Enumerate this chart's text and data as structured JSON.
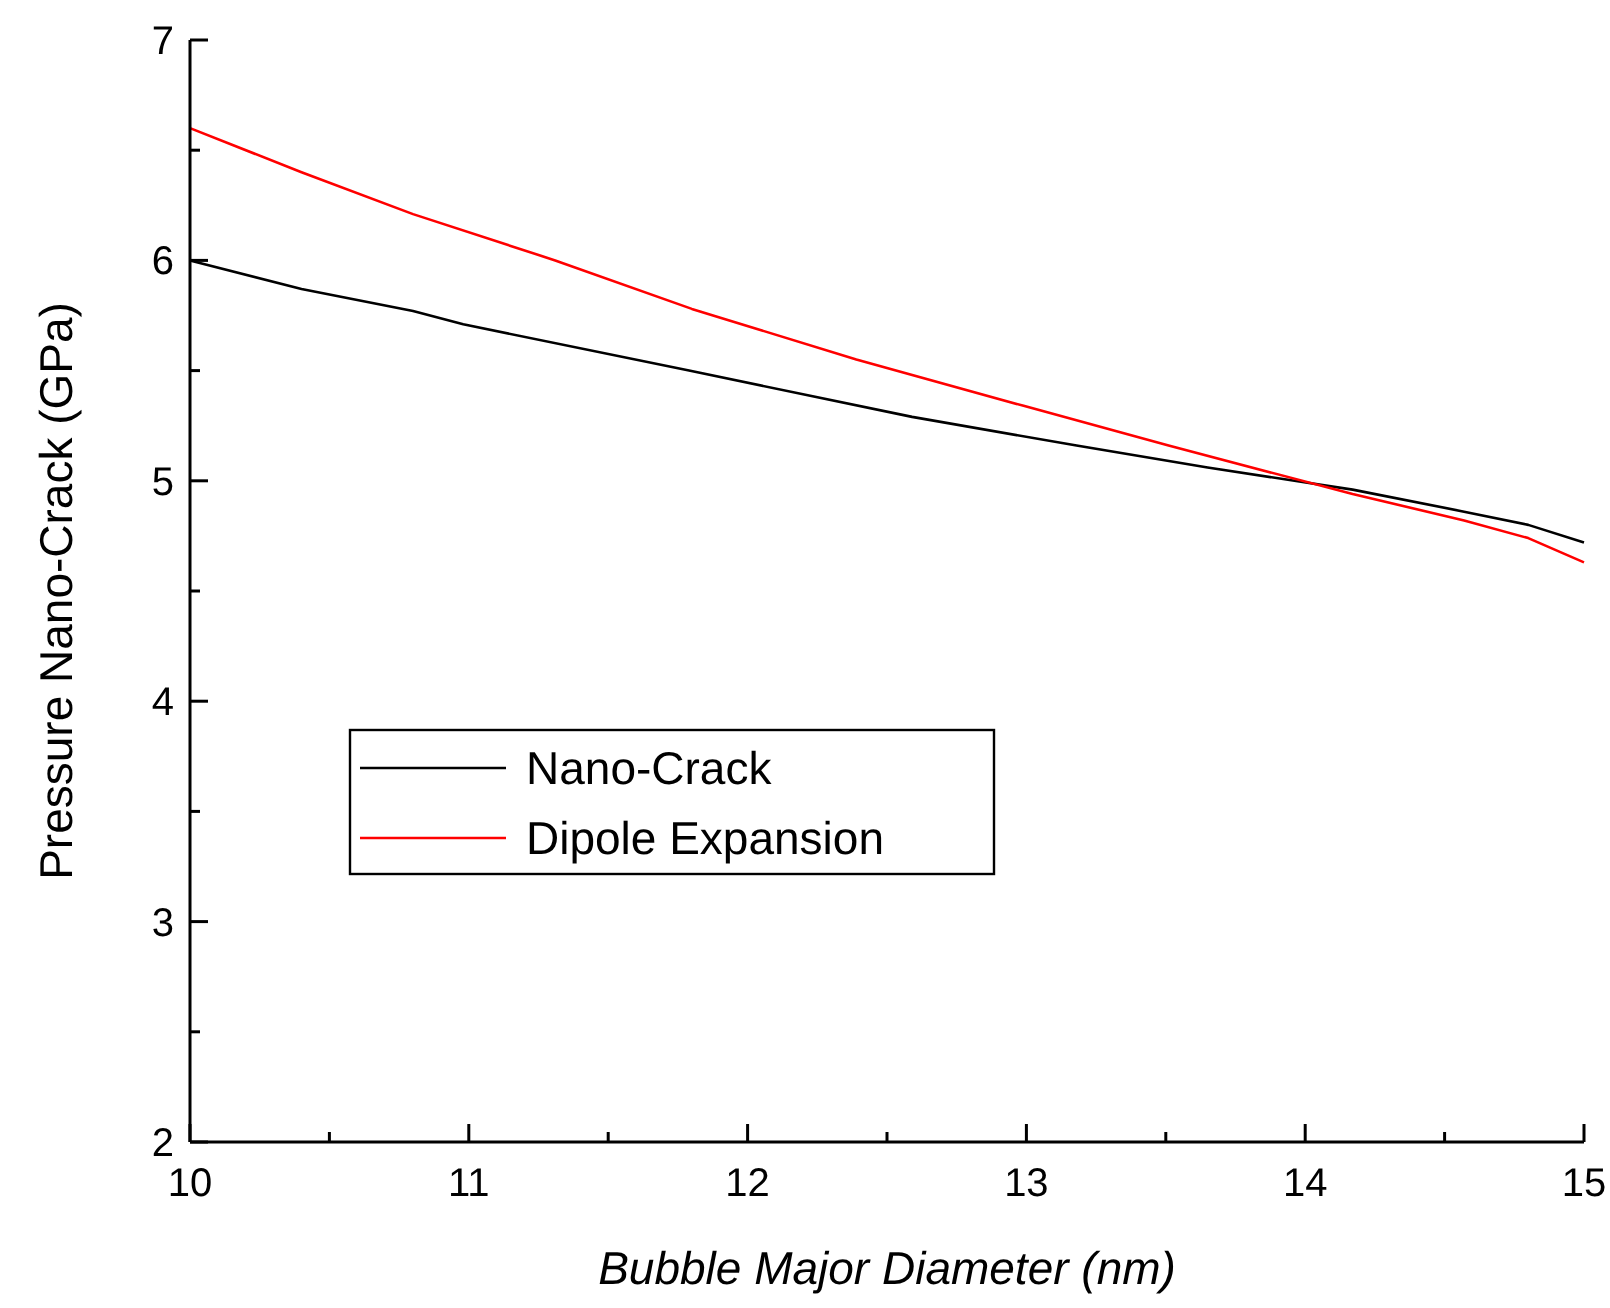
{
  "chart_data": {
    "type": "line",
    "xlabel": "Bubble Major Diameter (nm)",
    "ylabel": "Pressure Nano-Crack (GPa)",
    "xlim": [
      10,
      15
    ],
    "ylim": [
      2,
      7
    ],
    "xticks": [
      10,
      {
        "value": 10.5,
        "label": null
      },
      11,
      {
        "value": 11.5,
        "label": null
      },
      12,
      {
        "value": 12.5,
        "label": null
      },
      13,
      {
        "value": 13.5,
        "label": null
      },
      14,
      {
        "value": 14.5,
        "label": null
      },
      15
    ],
    "yticks": [
      2,
      {
        "value": 2.5,
        "label": null
      },
      3,
      {
        "value": 3.5,
        "label": null
      },
      4,
      {
        "value": 4.5,
        "label": null
      },
      5,
      {
        "value": 5.5,
        "label": null
      },
      6,
      {
        "value": 6.5,
        "label": null
      },
      7
    ],
    "legend": "left",
    "marker": "none",
    "line_style": "solid",
    "grid": false,
    "series": [
      {
        "name": "Nano-Crack",
        "color": "#000000",
        "x": [
          10,
          10.4,
          10.8,
          10.98,
          11.79,
          12.59,
          13.18,
          13.65,
          14.17,
          14.57,
          14.8,
          15
        ],
        "values": [
          6.0,
          5.87,
          5.77,
          5.71,
          5.5,
          5.29,
          5.16,
          5.06,
          4.96,
          4.86,
          4.8,
          4.72
        ]
      },
      {
        "name": "Dipole Expansion",
        "color": "#ff0000",
        "x": [
          10,
          10.4,
          10.8,
          11.31,
          11.8,
          12.39,
          12.99,
          13.51,
          14.17,
          14.57,
          14.8,
          15
        ],
        "values": [
          6.6,
          6.4,
          6.21,
          6.0,
          5.78,
          5.55,
          5.34,
          5.16,
          4.94,
          4.82,
          4.74,
          4.63
        ]
      }
    ]
  }
}
